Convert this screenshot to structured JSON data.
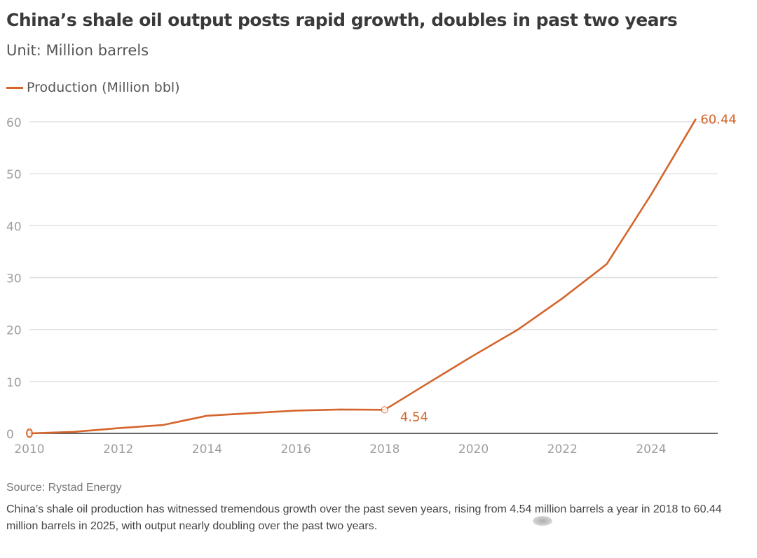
{
  "colors": {
    "series": "#d4652c",
    "grid": "#d9d9d9",
    "axis": "#333333",
    "tick_text": "#9e9e9e"
  },
  "chart_data": {
    "type": "line",
    "title": "China’s shale oil output posts rapid growth, doubles in past two years",
    "subtitle": "Unit: Million barrels",
    "xlabel": "",
    "ylabel": "",
    "xlim": [
      2010,
      2025.5
    ],
    "ylim": [
      0,
      60
    ],
    "x_ticks": [
      2010,
      2012,
      2014,
      2016,
      2018,
      2020,
      2022,
      2024
    ],
    "y_ticks": [
      0,
      10,
      20,
      30,
      40,
      50,
      60
    ],
    "grid": true,
    "legend_position": "top-left",
    "series": [
      {
        "name": "Production (Million bbl)",
        "x": [
          2010,
          2011,
          2012,
          2013,
          2014,
          2015,
          2016,
          2017,
          2018,
          2019,
          2020,
          2021,
          2022,
          2023,
          2024,
          2025
        ],
        "values": [
          0,
          0.3,
          1,
          1.6,
          3.4,
          3.9,
          4.4,
          4.6,
          4.54,
          9.8,
          15,
          20,
          26,
          32.6,
          46,
          60.44
        ]
      }
    ],
    "annotations": [
      {
        "x": 2010,
        "value": 0,
        "label": "0",
        "marker": true
      },
      {
        "x": 2018,
        "value": 4.54,
        "label": "4.54",
        "marker": true
      },
      {
        "x": 2025,
        "value": 60.44,
        "label": "60.44",
        "marker": false
      }
    ]
  },
  "source": "Source: Rystad Energy",
  "caption": "China’s shale oil production has witnessed tremendous growth over the past seven years, rising from 4.54 million barrels a year in 2018 to 60.44 million barrels in 2025, with output nearly doubling over the past two years."
}
